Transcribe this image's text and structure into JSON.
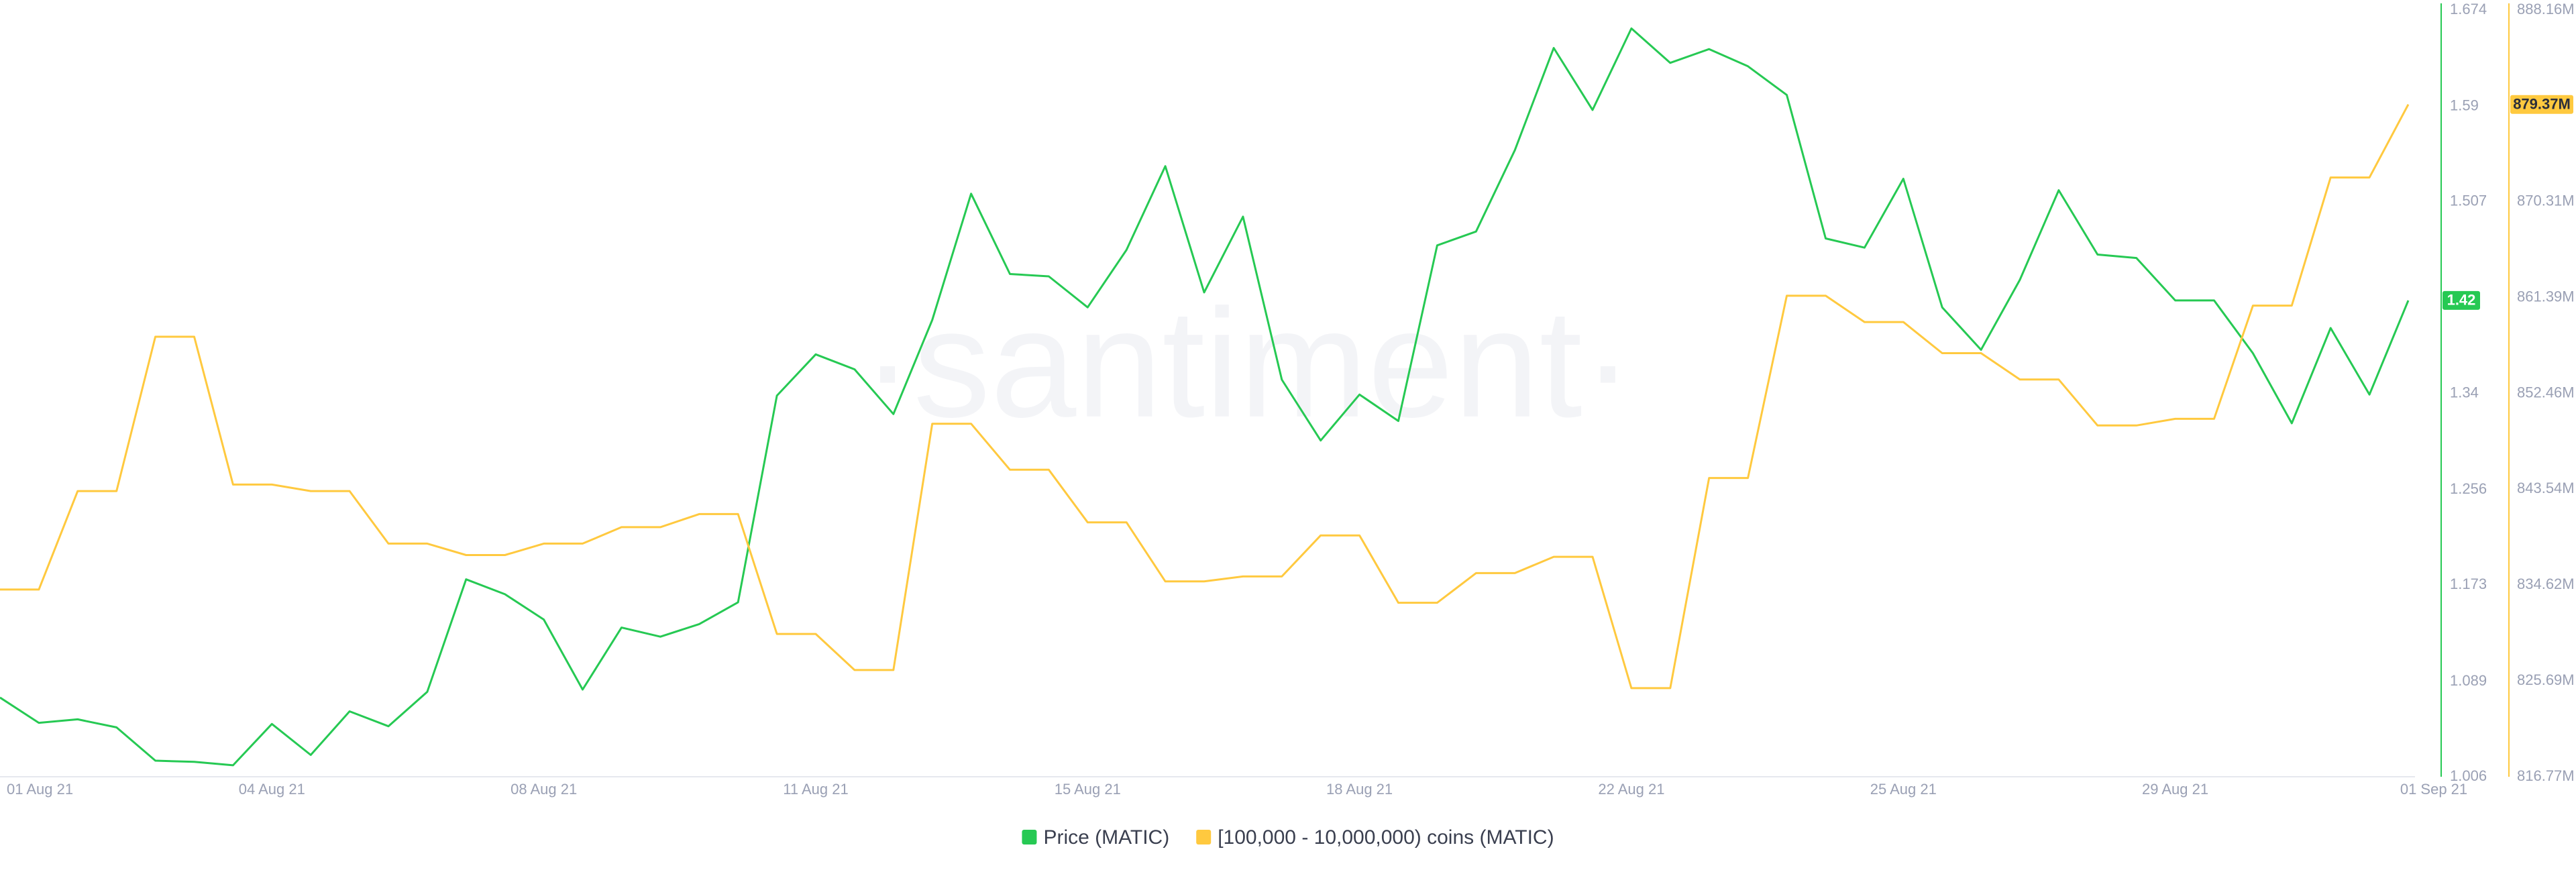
{
  "chart_data": {
    "type": "line",
    "watermark": "·santiment·",
    "categories": [
      "01 Aug 21",
      null,
      null,
      null,
      null,
      null,
      null,
      "04 Aug 21",
      null,
      null,
      null,
      null,
      null,
      null,
      "08 Aug 21",
      null,
      null,
      null,
      null,
      null,
      null,
      "11 Aug 21",
      null,
      null,
      null,
      null,
      null,
      null,
      "15 Aug 21",
      null,
      null,
      null,
      null,
      null,
      null,
      "18 Aug 21",
      null,
      null,
      null,
      null,
      null,
      null,
      "22 Aug 21",
      null,
      null,
      null,
      null,
      null,
      null,
      "25 Aug 21",
      null,
      null,
      null,
      null,
      null,
      null,
      "29 Aug 21",
      null,
      null,
      null,
      null,
      null,
      "01 Sep 21"
    ],
    "series": [
      {
        "name": "Price (MATIC)",
        "color": "#26c953",
        "axis": "y",
        "values": [
          1.075,
          1.053,
          1.056,
          1.049,
          1.02,
          1.019,
          1.016,
          1.052,
          1.025,
          1.063,
          1.05,
          1.08,
          1.178,
          1.165,
          1.143,
          1.082,
          1.136,
          1.128,
          1.139,
          1.158,
          1.338,
          1.374,
          1.361,
          1.322,
          1.404,
          1.514,
          1.444,
          1.442,
          1.415,
          1.465,
          1.538,
          1.428,
          1.494,
          1.352,
          1.299,
          1.339,
          1.316,
          1.469,
          1.481,
          1.552,
          1.641,
          1.587,
          1.658,
          1.628,
          1.64,
          1.625,
          1.6,
          1.475,
          1.467,
          1.527,
          1.415,
          1.378,
          1.439,
          1.517,
          1.461,
          1.458,
          1.421,
          1.421,
          1.375,
          1.314,
          1.397,
          1.339,
          1.421
        ],
        "value_labels": [
          null,
          null,
          null,
          null,
          null,
          null,
          null,
          null,
          null,
          null,
          null,
          null,
          null,
          null,
          null,
          null,
          null,
          null,
          null,
          null,
          null,
          null,
          null,
          null,
          null,
          null,
          null,
          null,
          null,
          null,
          null,
          null,
          null,
          null,
          null,
          null,
          null,
          null,
          null,
          null,
          null,
          null,
          null,
          null,
          null,
          null,
          null,
          null,
          null,
          null,
          null,
          null,
          null,
          null,
          null,
          null,
          null,
          null,
          null,
          null,
          null,
          null,
          "1.42"
        ]
      },
      {
        "name": "[100,000  - 10,000,000) coins (MATIC)",
        "color": "#ffc93f",
        "axis": "y2",
        "values": [
          834.2,
          834.2,
          843.37,
          843.37,
          857.74,
          857.74,
          843.98,
          843.98,
          843.37,
          843.37,
          838.48,
          838.48,
          837.41,
          837.41,
          838.48,
          838.48,
          840.01,
          840.01,
          841.23,
          841.23,
          830.07,
          830.07,
          826.71,
          826.71,
          849.64,
          849.64,
          845.36,
          845.36,
          840.46,
          840.46,
          834.96,
          834.96,
          835.42,
          835.42,
          839.24,
          839.24,
          832.97,
          832.97,
          835.73,
          835.73,
          837.25,
          837.25,
          825.02,
          825.02,
          844.59,
          844.59,
          861.56,
          861.56,
          859.11,
          859.11,
          856.21,
          856.21,
          853.76,
          853.76,
          849.48,
          849.48,
          850.1,
          850.1,
          860.64,
          860.64,
          872.57,
          872.57,
          879.37
        ],
        "value_labels": [
          null,
          null,
          null,
          null,
          null,
          null,
          null,
          null,
          null,
          null,
          null,
          null,
          null,
          null,
          null,
          null,
          null,
          null,
          null,
          null,
          null,
          null,
          null,
          null,
          null,
          null,
          null,
          null,
          null,
          null,
          null,
          null,
          null,
          null,
          null,
          null,
          null,
          null,
          null,
          null,
          null,
          null,
          null,
          null,
          null,
          null,
          null,
          null,
          null,
          null,
          null,
          null,
          null,
          null,
          null,
          null,
          null,
          null,
          null,
          null,
          null,
          null,
          "879.37M"
        ]
      }
    ],
    "ylim": [
      1.006,
      1.674
    ],
    "yticks": [
      1.006,
      1.089,
      1.173,
      1.256,
      1.34,
      1.507,
      1.59,
      1.674
    ],
    "y2lim": [
      816.77,
      888.16
    ],
    "y2ticks": [
      {
        "value": 816.77,
        "label": "816.77M"
      },
      {
        "value": 825.69,
        "label": "825.69M"
      },
      {
        "value": 834.62,
        "label": "834.62M"
      },
      {
        "value": 843.54,
        "label": "843.54M"
      },
      {
        "value": 852.46,
        "label": "852.46M"
      },
      {
        "value": 861.39,
        "label": "861.39M"
      },
      {
        "value": 870.31,
        "label": "870.31M"
      },
      {
        "value": 888.16,
        "label": "888.16M"
      }
    ],
    "grid": false
  }
}
